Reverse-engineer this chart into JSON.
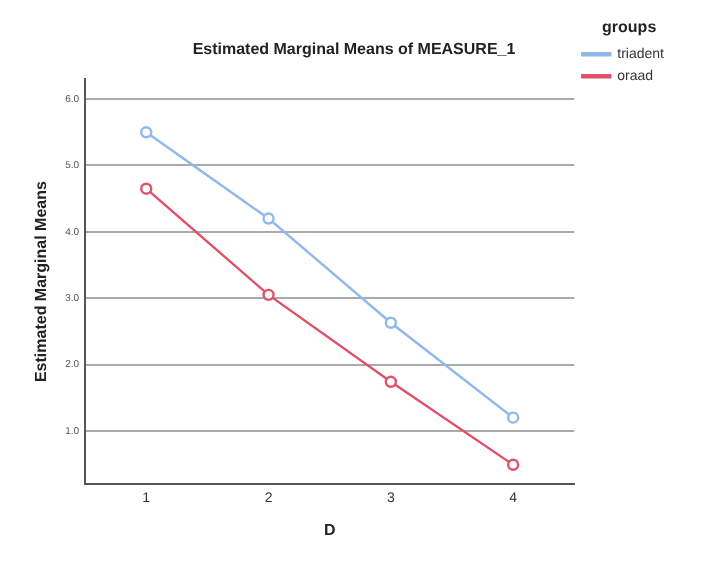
{
  "chart_data": {
    "type": "line",
    "title": "Estimated Marginal Means of MEASURE_1",
    "xlabel": "D",
    "ylabel": "Estimated Marginal Means",
    "legend_title": "groups",
    "categories": [
      "1",
      "2",
      "3",
      "4"
    ],
    "series": [
      {
        "name": "triadent",
        "color": "#8fb8ec",
        "values": [
          5.5,
          4.2,
          2.63,
          1.2
        ]
      },
      {
        "name": "oraad",
        "color": "#e0506a",
        "values": [
          4.65,
          3.05,
          1.74,
          0.49
        ]
      }
    ],
    "ylim": [
      0.2,
      6.3
    ],
    "yticks": [
      {
        "value": 1,
        "label": "1.0"
      },
      {
        "value": 2,
        "label": "2.0"
      },
      {
        "value": 3,
        "label": "3.0"
      },
      {
        "value": 4,
        "label": "4.0"
      },
      {
        "value": 5,
        "label": "5.0"
      },
      {
        "value": 6,
        "label": "6.0"
      }
    ],
    "grid": "y",
    "legend": "top right",
    "marker": "circle",
    "line_style": "solid"
  }
}
